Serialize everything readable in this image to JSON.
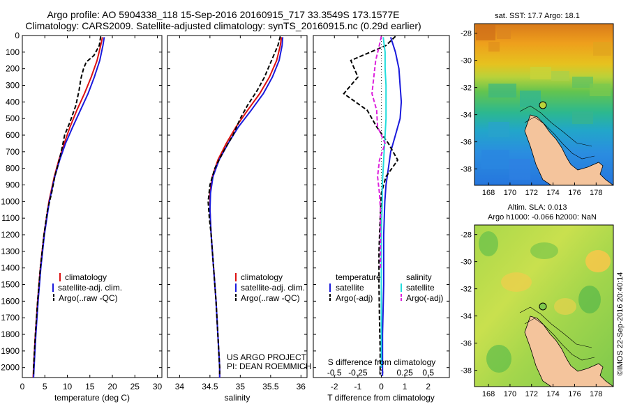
{
  "header": {
    "line1": "Argo profile: AO 5904338_118 15-Sep-2016 20160915_717 33.3549S 173.1577E",
    "line2": "Climatology: CARS2009. Satellite-adjusted climatology: synTS_20160915.nc (0.29d earlier)"
  },
  "project": {
    "line1": "US ARGO PROJECT",
    "line2": "PI: DEAN ROEMMICH"
  },
  "credit": "©IMOS 22-Sep-2016 20:40:14",
  "colors": {
    "climatology": "#dd1111",
    "satellite": "#1a1adc",
    "argo": "#000000",
    "salinity_satellite": "#22dddd",
    "salinity_argo": "#dd22dd",
    "land": "#f4c49c"
  },
  "chart_data": [
    {
      "type": "line",
      "panel": "temperature",
      "xlabel": "temperature (deg C)",
      "ylabel": "",
      "xlim": [
        0,
        31
      ],
      "ylim": [
        2060,
        0
      ],
      "x_ticks": [
        0,
        5,
        10,
        15,
        20,
        25,
        30
      ],
      "y_ticks": [
        0,
        100,
        200,
        300,
        400,
        500,
        600,
        700,
        800,
        900,
        1000,
        1100,
        1200,
        1300,
        1400,
        1500,
        1600,
        1700,
        1800,
        1900,
        2000
      ],
      "legend": [
        "climatology",
        "satellite-adj. clim.",
        "Argo(..raw -QC)"
      ],
      "legend_position": "lower-middle",
      "series": [
        {
          "name": "climatology",
          "style": "solid",
          "depth": [
            10,
            60,
            150,
            250,
            350,
            450,
            550,
            650,
            750,
            850,
            1000,
            1200,
            1400,
            1600,
            1800,
            2000,
            2060
          ],
          "values": [
            17.8,
            17.4,
            16.6,
            15.3,
            13.8,
            12.1,
            10.6,
            9.3,
            8.1,
            7.1,
            5.9,
            4.8,
            4.0,
            3.4,
            2.9,
            2.5,
            2.4
          ]
        },
        {
          "name": "satellite-adj. clim.",
          "style": "solid",
          "depth": [
            10,
            60,
            150,
            250,
            350,
            450,
            550,
            650,
            750,
            850,
            1000,
            1200,
            1400,
            1600,
            1800,
            2000,
            2060
          ],
          "values": [
            18.2,
            17.9,
            17.2,
            16.0,
            14.6,
            12.9,
            11.2,
            9.6,
            8.3,
            7.2,
            6.0,
            4.9,
            4.1,
            3.5,
            3.0,
            2.6,
            2.5
          ]
        },
        {
          "name": "Argo(..raw -QC)",
          "style": "dashed",
          "depth": [
            5,
            60,
            120,
            160,
            200,
            260,
            330,
            420,
            520,
            600,
            680,
            760,
            850,
            950,
            1050,
            1200,
            1400,
            1600,
            1800,
            2000,
            2040
          ],
          "values": [
            17.4,
            17.1,
            15.9,
            14.2,
            13.6,
            13.0,
            12.6,
            11.9,
            10.6,
            9.4,
            8.8,
            8.1,
            7.2,
            6.5,
            5.6,
            4.8,
            4.0,
            3.4,
            2.9,
            2.5,
            2.5
          ]
        }
      ]
    },
    {
      "type": "line",
      "panel": "salinity",
      "xlabel": "salinity",
      "ylabel": "",
      "xlim": [
        33.8,
        36.1
      ],
      "ylim": [
        2060,
        0
      ],
      "x_ticks": [
        34,
        34.5,
        35,
        35.5,
        36
      ],
      "x_tick_labels": [
        "34",
        "34.5",
        "35",
        "35.5",
        "36"
      ],
      "legend": [
        "climatology",
        "satellite-adj. clim.",
        "Argo(..raw -QC)"
      ],
      "legend_position": "lower-right",
      "series": [
        {
          "name": "climatology",
          "style": "solid",
          "depth": [
            10,
            60,
            150,
            250,
            350,
            450,
            550,
            650,
            750,
            850,
            950,
            1050,
            1200,
            1400,
            1600,
            1800,
            2000,
            2060
          ],
          "values": [
            35.68,
            35.66,
            35.6,
            35.48,
            35.32,
            35.12,
            34.93,
            34.77,
            34.63,
            34.54,
            34.5,
            34.5,
            34.52,
            34.56,
            34.6,
            34.63,
            34.66,
            34.66
          ]
        },
        {
          "name": "satellite-adj. clim.",
          "style": "solid",
          "depth": [
            10,
            60,
            150,
            250,
            350,
            450,
            550,
            650,
            750,
            850,
            950,
            1050,
            1200,
            1400,
            1600,
            1800,
            2000,
            2060
          ],
          "values": [
            35.7,
            35.69,
            35.64,
            35.53,
            35.38,
            35.18,
            34.97,
            34.8,
            34.65,
            34.55,
            34.51,
            34.5,
            34.52,
            34.56,
            34.6,
            34.63,
            34.66,
            34.66
          ]
        },
        {
          "name": "Argo(..raw -QC)",
          "style": "dashed",
          "depth": [
            5,
            60,
            120,
            180,
            250,
            330,
            420,
            500,
            600,
            700,
            800,
            900,
            1000,
            1100,
            1200,
            1400,
            1600,
            1800,
            2000,
            2040
          ],
          "values": [
            35.66,
            35.62,
            35.55,
            35.48,
            35.4,
            35.28,
            35.12,
            35.0,
            34.88,
            34.72,
            34.58,
            34.5,
            34.47,
            34.49,
            34.52,
            34.56,
            34.6,
            34.63,
            34.66,
            34.66
          ]
        }
      ]
    },
    {
      "type": "line",
      "panel": "difference",
      "xlabel": "T difference from climatology",
      "x2label": "S difference from climatology",
      "xlim": [
        -2.9,
        2.9
      ],
      "ylim": [
        2060,
        0
      ],
      "x_ticks": [
        -2,
        -1,
        0,
        1,
        2
      ],
      "x2_ticks": [
        -0.5,
        -0.25,
        0,
        0.25,
        0.5
      ],
      "x2_tick_labels": [
        "-0.5",
        "-0.25",
        "0",
        "0.25",
        "0.5"
      ],
      "legend_titles": [
        "temperature",
        "salinity"
      ],
      "legend": [
        "satellite",
        "Argo(-adj)",
        "satellite",
        "Argo(-adj)"
      ],
      "legend_position": "lower-middle",
      "series": [
        {
          "name": "satellite",
          "group": "temperature",
          "style": "solid",
          "depth": [
            10,
            100,
            200,
            300,
            400,
            500,
            600,
            700,
            800,
            900,
            1000,
            1200,
            1500,
            1800,
            2050
          ],
          "values": [
            0.4,
            0.6,
            0.75,
            0.8,
            0.85,
            0.8,
            0.6,
            0.4,
            0.3,
            0.2,
            0.15,
            0.1,
            0.1,
            0.05,
            0.05
          ]
        },
        {
          "name": "Argo(-adj)",
          "group": "temperature",
          "style": "dashed",
          "depth": [
            5,
            60,
            150,
            250,
            350,
            450,
            550,
            650,
            750,
            850,
            950,
            1100,
            1300,
            1500,
            1700,
            1900,
            2040
          ],
          "values": [
            0.6,
            0.2,
            -1.3,
            -1.0,
            -1.6,
            -0.6,
            -0.2,
            0.3,
            0.7,
            0.2,
            0.0,
            -0.05,
            -0.1,
            -0.1,
            -0.08,
            -0.05,
            -0.05
          ]
        },
        {
          "name": "satellite",
          "group": "salinity",
          "style": "solid",
          "depth": [
            10,
            100,
            200,
            300,
            400,
            500,
            600,
            700,
            800,
            900,
            1000,
            1200,
            1400,
            1600,
            1800,
            2000
          ],
          "values": [
            0.02,
            0.04,
            0.04,
            0.05,
            0.05,
            0.05,
            0.04,
            0.03,
            0.02,
            0.01,
            0.01,
            0.0,
            0.0,
            0.0,
            0.0,
            0.0
          ]
        },
        {
          "name": "Argo(-adj)",
          "group": "salinity",
          "style": "dashed",
          "depth": [
            5,
            80,
            150,
            250,
            350,
            450,
            550,
            650,
            750,
            850,
            950,
            1050,
            1200,
            1400
          ],
          "values": [
            0.0,
            -0.03,
            -0.06,
            -0.08,
            -0.1,
            -0.05,
            -0.04,
            0.04,
            -0.02,
            -0.04,
            -0.02,
            -0.01,
            -0.01,
            -0.01
          ]
        }
      ]
    },
    {
      "type": "heatmap",
      "panel": "sst-map",
      "title": "sat. SST: 17.7 Argo: 18.1",
      "x_ticks": [
        168,
        170,
        172,
        174,
        176,
        178
      ],
      "y_ticks": [
        -28,
        -30,
        -32,
        -34,
        -36,
        -38
      ],
      "xlim": [
        166.7,
        179.6
      ],
      "ylim": [
        -39.2,
        -27.3
      ],
      "argo_position": {
        "lon": 173.16,
        "lat": -33.35
      }
    },
    {
      "type": "heatmap",
      "panel": "sla-map",
      "title": "Altim. SLA: 0.013",
      "subtitle": "Argo h1000: -0.066 h2000: NaN",
      "x_ticks": [
        168,
        170,
        172,
        174,
        176,
        178
      ],
      "y_ticks": [
        -28,
        -30,
        -32,
        -34,
        -36,
        -38
      ],
      "xlim": [
        166.7,
        179.6
      ],
      "ylim": [
        -39.2,
        -27.3
      ],
      "argo_position": {
        "lon": 173.16,
        "lat": -33.35
      }
    }
  ]
}
